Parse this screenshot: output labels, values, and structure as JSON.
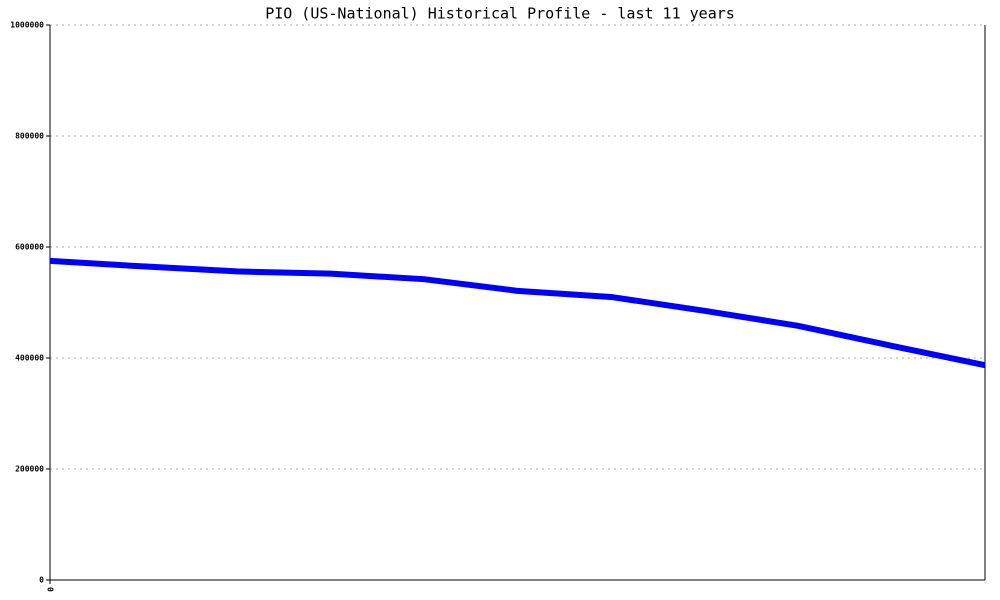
{
  "chart_data": {
    "type": "line",
    "title": "PIO (US-National) Historical Profile - last 11 years",
    "x": [
      0,
      1,
      2,
      3,
      4,
      5,
      6,
      7,
      8,
      9,
      10
    ],
    "series": [
      {
        "color": "#0000ff",
        "values": [
          575000,
          565000,
          556000,
          552000,
          542000,
          521000,
          510000,
          485000,
          458000,
          422000,
          387000
        ]
      }
    ],
    "xlim": [
      0,
      10
    ],
    "xticks": [
      0
    ],
    "ylim": [
      0,
      1000000
    ],
    "yticks": [
      0,
      200000,
      400000,
      600000,
      800000,
      1000000
    ],
    "grid": true
  }
}
